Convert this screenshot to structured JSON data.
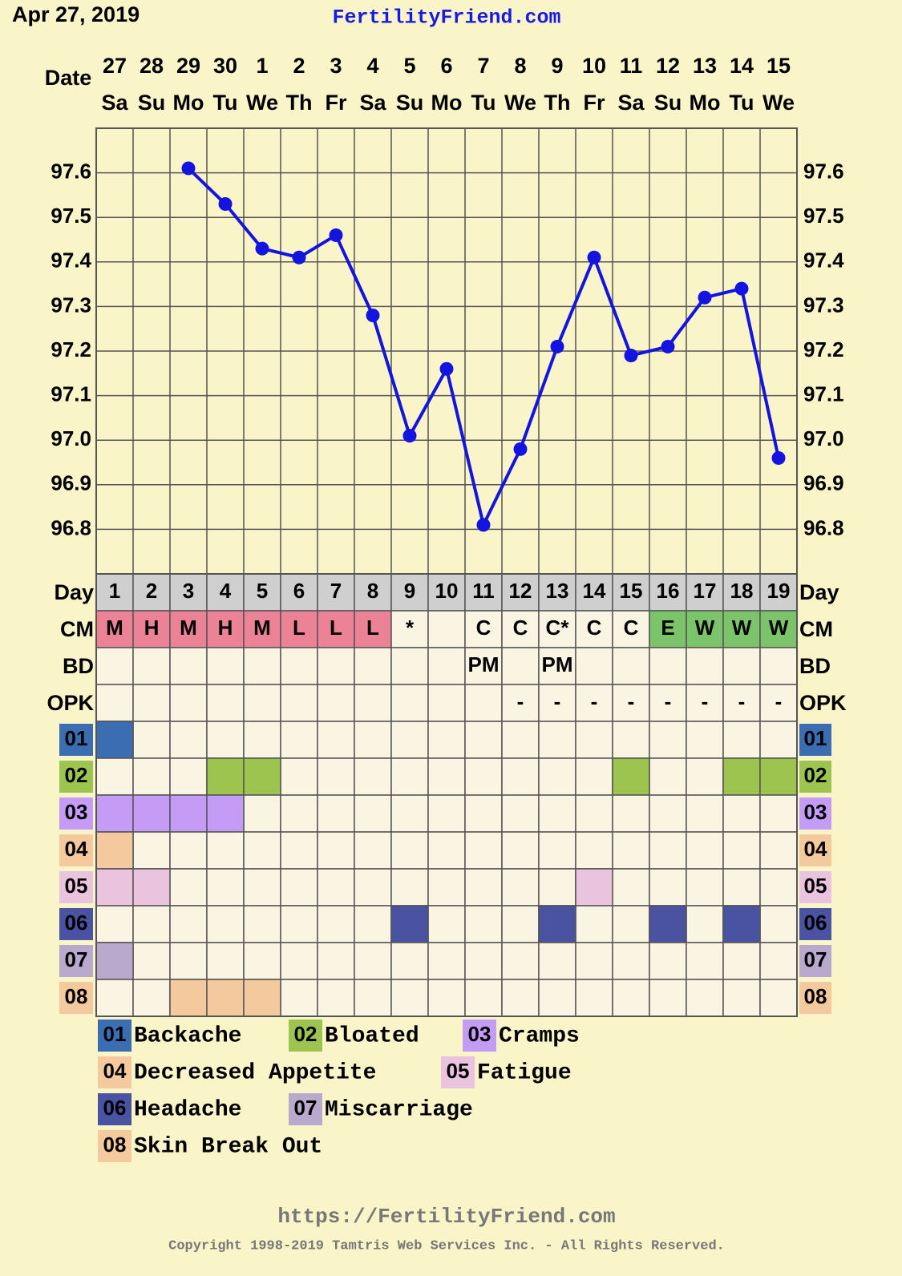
{
  "header": {
    "date": "Apr 27, 2019",
    "site": "FertilityFriend.com"
  },
  "dates": {
    "label": "Date",
    "numbers": [
      "27",
      "28",
      "29",
      "30",
      "1",
      "2",
      "3",
      "4",
      "5",
      "6",
      "7",
      "8",
      "9",
      "10",
      "11",
      "12",
      "13",
      "14",
      "15"
    ],
    "weekdays": [
      "Sa",
      "Su",
      "Mo",
      "Tu",
      "We",
      "Th",
      "Fr",
      "Sa",
      "Su",
      "Mo",
      "Tu",
      "We",
      "Th",
      "Fr",
      "Sa",
      "Su",
      "Mo",
      "Tu",
      "We"
    ]
  },
  "chart_data": {
    "type": "line",
    "categories": [
      "1",
      "2",
      "3",
      "4",
      "5",
      "6",
      "7",
      "8",
      "9",
      "10",
      "11",
      "12",
      "13",
      "14",
      "15",
      "16",
      "17",
      "18",
      "19"
    ],
    "series": [
      {
        "name": "Temperature",
        "color": "#1414e0",
        "values": [
          null,
          null,
          97.61,
          97.53,
          97.43,
          97.41,
          97.46,
          97.28,
          97.01,
          97.16,
          96.81,
          96.98,
          97.21,
          97.41,
          97.19,
          97.21,
          97.32,
          97.34,
          96.96
        ]
      }
    ],
    "ylim": [
      96.7,
      97.7
    ],
    "yticks": [
      96.8,
      96.9,
      {
        "value": 97.0,
        "label": "97.0"
      },
      97.1,
      97.2,
      97.3,
      97.4,
      97.5,
      97.6
    ],
    "grid": true
  },
  "day_label": "Day",
  "rows": [
    {
      "label": "CM",
      "values": [
        "M",
        "H",
        "M",
        "H",
        "M",
        "L",
        "L",
        "L",
        "*",
        null,
        "C",
        "C",
        "C*",
        "C",
        "C",
        "E",
        "W",
        "W",
        "W"
      ],
      "colors": [
        "#ec8296",
        "#ec8296",
        "#ec8296",
        "#ec8296",
        "#ec8296",
        "#ec8296",
        "#ec8296",
        "#ec8296",
        null,
        null,
        null,
        null,
        null,
        null,
        null,
        "#7cc46a",
        "#7cc46a",
        "#7cc46a",
        "#7cc46a"
      ]
    },
    {
      "label": "BD",
      "values": [
        null,
        null,
        null,
        null,
        null,
        null,
        null,
        null,
        null,
        null,
        "PM",
        null,
        "PM",
        null,
        null,
        null,
        null,
        null,
        null
      ]
    },
    {
      "label": "OPK",
      "values": [
        null,
        null,
        null,
        null,
        null,
        null,
        null,
        null,
        null,
        null,
        null,
        "-",
        "-",
        "-",
        "-",
        "-",
        "-",
        "-",
        "-"
      ]
    }
  ],
  "symptoms": [
    {
      "code": "01",
      "name": "Backache",
      "color": "#3a6db2",
      "days": [
        1
      ]
    },
    {
      "code": "02",
      "name": "Bloated",
      "color": "#9cc44e",
      "days": [
        4,
        5,
        15,
        18,
        19
      ]
    },
    {
      "code": "03",
      "name": "Cramps",
      "color": "#c49cf6",
      "days": [
        1,
        2,
        3,
        4
      ]
    },
    {
      "code": "04",
      "name": "Decreased Appetite",
      "color": "#f5c99e",
      "days": [
        1
      ]
    },
    {
      "code": "05",
      "name": "Fatigue",
      "color": "#eac4de",
      "days": [
        1,
        2,
        14
      ]
    },
    {
      "code": "06",
      "name": "Headache",
      "color": "#4a52a2",
      "days": [
        9,
        13,
        16,
        18
      ]
    },
    {
      "code": "07",
      "name": "Miscarriage",
      "color": "#b9a9cd",
      "days": [
        1
      ]
    },
    {
      "code": "08",
      "name": "Skin Break Out",
      "color": "#f5c99e",
      "days": [
        3,
        4,
        5
      ]
    }
  ],
  "footer": {
    "url": "https://FertilityFriend.com",
    "copyright": "Copyright 1998-2019 Tamtris Web Services Inc. - All Rights Reserved."
  }
}
